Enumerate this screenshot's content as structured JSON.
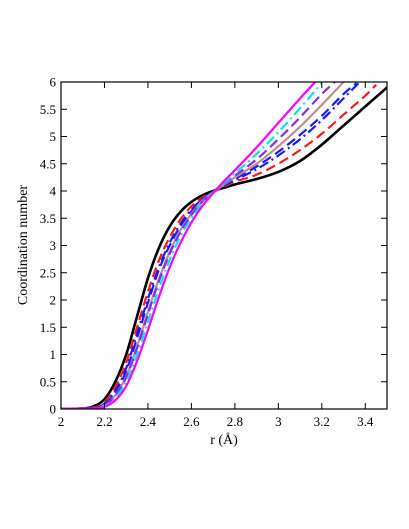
{
  "chart_data": {
    "type": "line",
    "xlabel": "r (Å)",
    "ylabel": "Coordination number",
    "xlim": [
      2,
      3.5
    ],
    "ylim": [
      0,
      6
    ],
    "grid": false,
    "legend": "none",
    "x_ticks": [
      "2",
      "2.2",
      "2.4",
      "2.6",
      "2.8",
      "3",
      "3.2",
      "3.4"
    ],
    "y_ticks": [
      "0",
      "0.5",
      "1",
      "1.5",
      "2",
      "2.5",
      "3",
      "3.5",
      "4",
      "4.5",
      "5",
      "5.5",
      "6"
    ],
    "series": [
      {
        "color": "#000000",
        "dash": "solid",
        "x": [
          2.0,
          2.1,
          2.15,
          2.2,
          2.25,
          2.3,
          2.35,
          2.4,
          2.45,
          2.5,
          2.55,
          2.6,
          2.65,
          2.7,
          2.75,
          2.8,
          2.9,
          3.0,
          3.1,
          3.2,
          3.3,
          3.4,
          3.5
        ],
        "y": [
          0.0,
          0.01,
          0.05,
          0.18,
          0.5,
          1.0,
          1.7,
          2.4,
          2.95,
          3.35,
          3.62,
          3.8,
          3.92,
          4.0,
          4.06,
          4.12,
          4.22,
          4.35,
          4.55,
          4.85,
          5.2,
          5.55,
          5.9
        ]
      },
      {
        "color": "#ff1a1a",
        "dash": "dashed",
        "x": [
          2.0,
          2.15,
          2.2,
          2.25,
          2.3,
          2.35,
          2.4,
          2.45,
          2.5,
          2.55,
          2.6,
          2.65,
          2.7,
          2.75,
          2.8,
          2.9,
          3.0,
          3.1,
          3.2,
          3.3,
          3.4,
          3.45
        ],
        "y": [
          0.0,
          0.03,
          0.13,
          0.4,
          0.85,
          1.5,
          2.15,
          2.72,
          3.15,
          3.48,
          3.72,
          3.88,
          3.98,
          4.08,
          4.17,
          4.3,
          4.5,
          4.75,
          5.05,
          5.4,
          5.75,
          5.95
        ]
      },
      {
        "color": "#1a1aff",
        "dash": "dashdot",
        "x": [
          2.0,
          2.15,
          2.2,
          2.25,
          2.3,
          2.35,
          2.4,
          2.45,
          2.5,
          2.55,
          2.6,
          2.65,
          2.7,
          2.75,
          2.8,
          2.9,
          3.0,
          3.1,
          3.2,
          3.3,
          3.37
        ],
        "y": [
          0.0,
          0.02,
          0.1,
          0.33,
          0.75,
          1.38,
          2.02,
          2.6,
          3.05,
          3.4,
          3.66,
          3.85,
          3.98,
          4.1,
          4.2,
          4.4,
          4.65,
          4.95,
          5.3,
          5.7,
          5.98
        ]
      },
      {
        "color": "#1a1aff",
        "dash": "dashed",
        "x": [
          2.0,
          2.15,
          2.2,
          2.25,
          2.3,
          2.35,
          2.4,
          2.45,
          2.5,
          2.55,
          2.6,
          2.65,
          2.7,
          2.75,
          2.8,
          2.9,
          3.0,
          3.1,
          3.2,
          3.3,
          3.36
        ],
        "y": [
          0.0,
          0.02,
          0.09,
          0.3,
          0.7,
          1.3,
          1.95,
          2.55,
          3.0,
          3.36,
          3.63,
          3.84,
          3.98,
          4.11,
          4.22,
          4.45,
          4.72,
          5.03,
          5.38,
          5.78,
          5.98
        ]
      },
      {
        "color": "#bc8f8f",
        "dash": "solid",
        "x": [
          2.0,
          2.15,
          2.2,
          2.25,
          2.3,
          2.35,
          2.4,
          2.45,
          2.5,
          2.55,
          2.6,
          2.65,
          2.7,
          2.75,
          2.8,
          2.9,
          3.0,
          3.1,
          3.2,
          3.3
        ],
        "y": [
          0.0,
          0.01,
          0.07,
          0.25,
          0.6,
          1.15,
          1.78,
          2.38,
          2.88,
          3.28,
          3.58,
          3.82,
          3.98,
          4.12,
          4.25,
          4.5,
          4.82,
          5.18,
          5.58,
          6.0
        ]
      },
      {
        "color": "#8a2be2",
        "dash": "dashed",
        "x": [
          2.0,
          2.15,
          2.2,
          2.25,
          2.3,
          2.35,
          2.4,
          2.45,
          2.5,
          2.55,
          2.6,
          2.65,
          2.7,
          2.75,
          2.8,
          2.9,
          3.0,
          3.1,
          3.2,
          3.26
        ],
        "y": [
          0.0,
          0.01,
          0.07,
          0.24,
          0.58,
          1.12,
          1.74,
          2.34,
          2.85,
          3.25,
          3.56,
          3.8,
          3.98,
          4.14,
          4.28,
          4.58,
          4.95,
          5.35,
          5.78,
          6.0
        ]
      },
      {
        "color": "#00e5ee",
        "dash": "dashdot",
        "x": [
          2.0,
          2.15,
          2.2,
          2.25,
          2.3,
          2.35,
          2.4,
          2.45,
          2.5,
          2.55,
          2.6,
          2.65,
          2.7,
          2.75,
          2.8,
          2.9,
          3.0,
          3.1,
          3.2
        ],
        "y": [
          0.0,
          0.01,
          0.05,
          0.2,
          0.5,
          1.0,
          1.6,
          2.2,
          2.74,
          3.17,
          3.5,
          3.77,
          3.97,
          4.15,
          4.32,
          4.68,
          5.08,
          5.52,
          5.98
        ]
      },
      {
        "color": "#ff00ff",
        "dash": "solid",
        "x": [
          2.0,
          2.15,
          2.2,
          2.25,
          2.3,
          2.35,
          2.4,
          2.45,
          2.5,
          2.55,
          2.6,
          2.65,
          2.7,
          2.75,
          2.8,
          2.9,
          3.0,
          3.1,
          3.17
        ],
        "y": [
          0.0,
          0.01,
          0.04,
          0.16,
          0.42,
          0.88,
          1.45,
          2.05,
          2.6,
          3.05,
          3.42,
          3.72,
          3.96,
          4.18,
          4.38,
          4.8,
          5.25,
          5.7,
          6.0
        ]
      }
    ]
  }
}
